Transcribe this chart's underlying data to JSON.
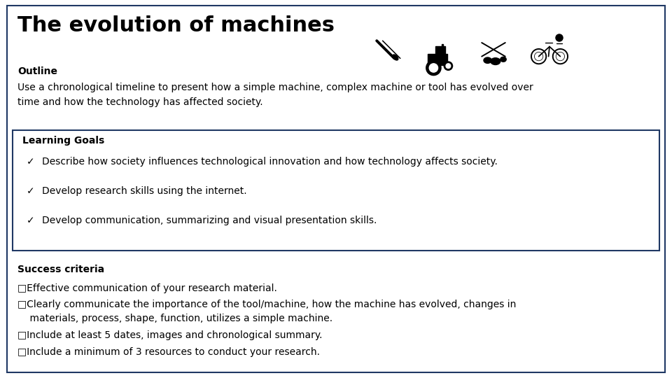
{
  "title": "The evolution of machines",
  "subtitle": "Outline",
  "description": "Use a chronological timeline to present how a simple machine, complex machine or tool has evolved over\ntime and how the technology has affected society.",
  "learning_goals_title": "Learning Goals",
  "learning_goals": [
    "Describe how society influences technological innovation and how technology affects society.",
    "Develop research skills using the internet.",
    "Develop communication, summarizing and visual presentation skills."
  ],
  "success_criteria_title": "Success criteria",
  "success_criteria": [
    "Effective communication of your research material.",
    "Clearly communicate the importance of the tool/machine, how the machine has evolved, changes in\n    materials, process, shape, function, utilizes a simple machine.",
    "Include at least 5 dates, images and chronological summary.",
    "Include a minimum of 3 resources to conduct your research."
  ],
  "background_color": "#ffffff",
  "border_color": "#1f3864",
  "text_color": "#000000",
  "box_border_color": "#1f3864",
  "title_fontsize": 22,
  "subtitle_fontsize": 10,
  "body_fontsize": 10,
  "header_fontsize": 10
}
